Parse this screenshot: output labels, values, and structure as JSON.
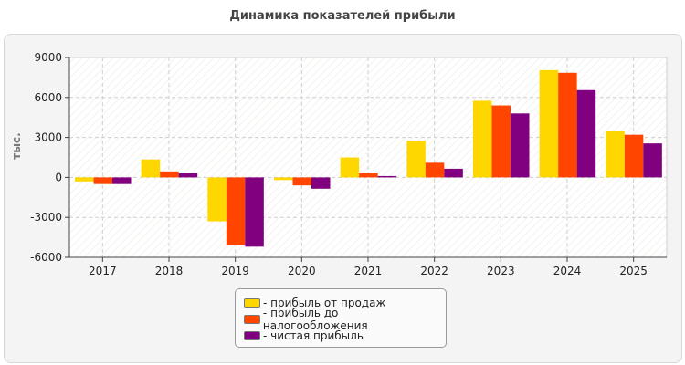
{
  "chart_data": {
    "type": "bar",
    "title": "Динамика показателей прибыли",
    "ylabel": "тыс.",
    "xlabel": "",
    "categories": [
      "2017",
      "2018",
      "2019",
      "2020",
      "2021",
      "2022",
      "2023",
      "2024",
      "2025"
    ],
    "ylim": [
      -6000,
      9000
    ],
    "yticks": [
      9000,
      6000,
      3000,
      0,
      -3000,
      -6000
    ],
    "grid": true,
    "legend_position": "bottom-center",
    "series": [
      {
        "name": "- прибыль от продаж",
        "color": "#FFD700",
        "values": [
          -300,
          1350,
          -3300,
          -200,
          1500,
          2750,
          5750,
          8050,
          3450
        ]
      },
      {
        "name": "- прибыль до налогообложения",
        "color": "#FF4500",
        "values": [
          -500,
          450,
          -5100,
          -600,
          300,
          1100,
          5400,
          7850,
          3200
        ]
      },
      {
        "name": "- чистая прибыль",
        "color": "#800080",
        "values": [
          -500,
          300,
          -5200,
          -850,
          100,
          650,
          4800,
          6550,
          2550
        ]
      }
    ]
  }
}
